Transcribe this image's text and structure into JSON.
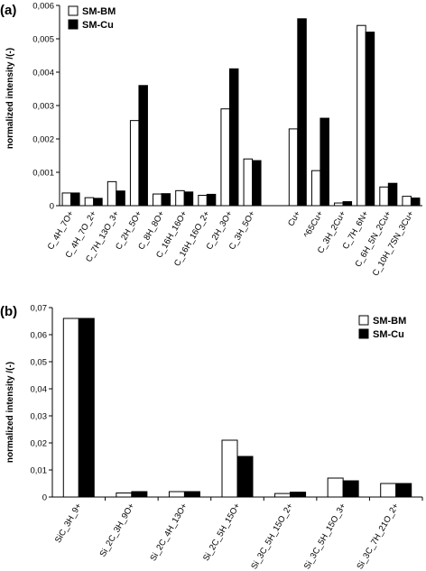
{
  "chart_data": [
    {
      "panel": "(a)",
      "type": "bar",
      "ylabel": "normalized intensity /(-)",
      "ylim": [
        0,
        0.006
      ],
      "yticks": [
        "0",
        "0,001",
        "0,002",
        "0,003",
        "0,004",
        "0,005",
        "0,006"
      ],
      "legend_position": "top-left",
      "categories": [
        "C_4H_7O+",
        "C_4H_7O_2+",
        "C_7H_13O_3+",
        "C_2H_5O+",
        "C_8H_8O+",
        "C_16H_16O+",
        "C_16H_16O_2+",
        "C_2H_3O+",
        "C_3H_5O+",
        "",
        "Cu+",
        "^65Cu+",
        "C_3H_2Cu+",
        "C_7H_6N+",
        "C_6H_5N_2Cu+",
        "C_10H_7SN_3Cu+"
      ],
      "series": [
        {
          "name": "SM-BM",
          "color": "#ffffff",
          "values": [
            0.00038,
            0.00024,
            0.00072,
            0.00255,
            0.00035,
            0.00045,
            0.00031,
            0.0029,
            0.0014,
            null,
            0.0023,
            0.00105,
            8e-05,
            0.0054,
            0.00056,
            0.00028
          ]
        },
        {
          "name": "SM-Cu",
          "color": "#000000",
          "values": [
            0.00038,
            0.00022,
            0.00044,
            0.0036,
            0.00036,
            0.00041,
            0.00034,
            0.0041,
            0.00135,
            null,
            0.0056,
            0.00262,
            0.00012,
            0.0052,
            0.00067,
            0.00023
          ]
        }
      ]
    },
    {
      "panel": "(b)",
      "type": "bar",
      "ylabel": "normalized intensity /(-)",
      "ylim": [
        0,
        0.07
      ],
      "yticks": [
        "0",
        "0,01",
        "0,02",
        "0,03",
        "0,04",
        "0,05",
        "0,06",
        "0,07"
      ],
      "legend_position": "top-right",
      "categories": [
        "SiC_3H_9+",
        "Si_2C_3H_9O+",
        "Si_2C_4H_13O+",
        "Si_2C_5H_15O+",
        "Si_3C_5H_15O_2+",
        "Si_3C_5H_15O_3+",
        "Si_3C_7H_21O_2+"
      ],
      "series": [
        {
          "name": "SM-BM",
          "color": "#ffffff",
          "values": [
            0.066,
            0.0015,
            0.002,
            0.021,
            0.0013,
            0.007,
            0.005
          ]
        },
        {
          "name": "SM-Cu",
          "color": "#000000",
          "values": [
            0.066,
            0.002,
            0.002,
            0.015,
            0.0018,
            0.006,
            0.005
          ]
        }
      ]
    }
  ]
}
